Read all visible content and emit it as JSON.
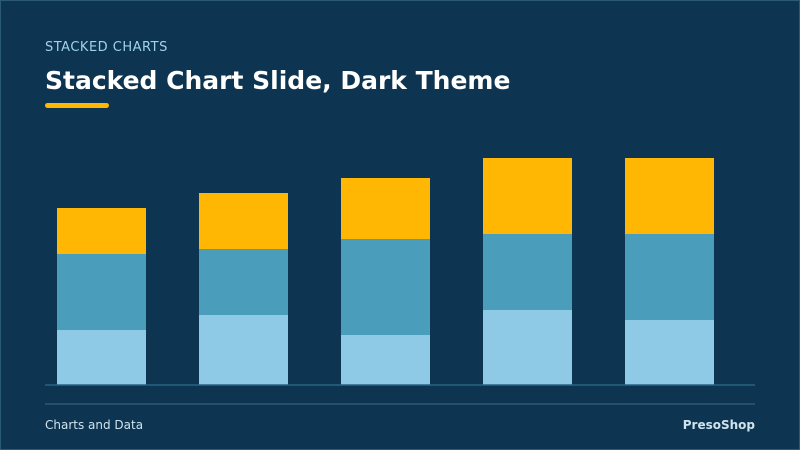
{
  "header": {
    "eyebrow": "STACKED CHARTS",
    "title": "Stacked Chart Slide, Dark Theme"
  },
  "footer": {
    "left": "Charts and Data",
    "right": "PresoShop"
  },
  "chart_data": {
    "type": "bar",
    "stacked": true,
    "categories": [
      null,
      null,
      null,
      null,
      null
    ],
    "series": [
      {
        "color": "#8ecae6",
        "values": [
          55,
          70,
          50,
          75,
          65
        ]
      },
      {
        "color": "#4a9dbb",
        "values": [
          76,
          66,
          96,
          76,
          86
        ]
      },
      {
        "color": "#ffb703",
        "values": [
          46,
          56,
          61,
          76,
          76
        ]
      }
    ],
    "ylim": [
      0,
      250
    ]
  }
}
